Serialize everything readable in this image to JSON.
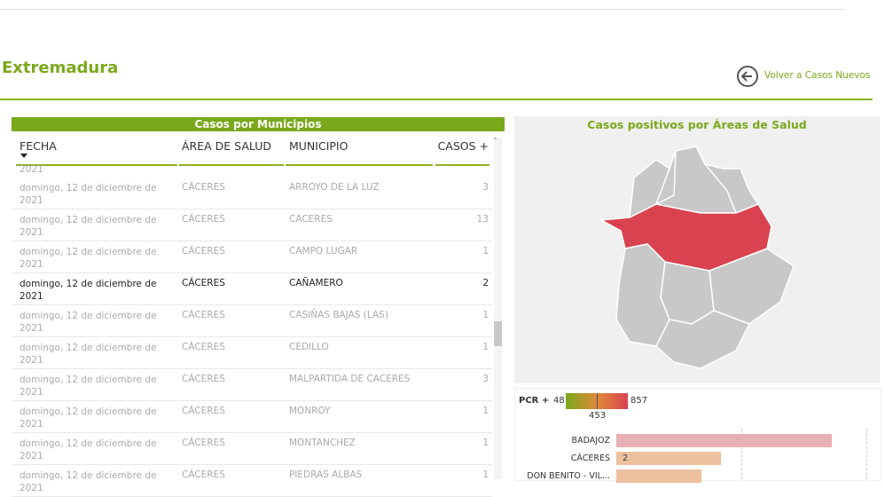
{
  "header": {
    "title": "Extremadura",
    "back_link": "Volver a Casos Nuevos"
  },
  "table": {
    "title": "Casos por Municipios",
    "columns": [
      "FECHA",
      "ÁREA DE SALUD",
      "MUNICIPIO",
      "CASOS +"
    ],
    "partial_row": "2021",
    "rows": [
      [
        "domingo, 12 de diciembre de 2021",
        "CÁCERES",
        "ARROYO DE LA LUZ",
        "3"
      ],
      [
        "domingo, 12 de diciembre de 2021",
        "CÁCERES",
        "CACERES",
        "13"
      ],
      [
        "domingo, 12 de diciembre de 2021",
        "CÁCERES",
        "CAMPO LUGAR",
        "1"
      ],
      [
        "domingo, 12 de diciembre de 2021",
        "CÁCERES",
        "CAÑAMERO",
        "2"
      ],
      [
        "domingo, 12 de diciembre de 2021",
        "CÁCERES",
        "CASIÑAS BAJAS (LAS)",
        "1"
      ],
      [
        "domingo, 12 de diciembre de 2021",
        "CÁCERES",
        "CEDILLO",
        "1"
      ],
      [
        "domingo, 12 de diciembre de 2021",
        "CÁCERES",
        "MALPARTIDA DE CACERES",
        "3"
      ],
      [
        "domingo, 12 de diciembre de 2021",
        "CÁCERES",
        "MONROY",
        "1"
      ],
      [
        "domingo, 12 de diciembre de 2021",
        "CÁCERES",
        "MONTANCHEZ",
        "1"
      ],
      [
        "domingo, 12 de diciembre de 2021",
        "CÁCERES",
        "PIEDRAS ALBAS",
        "1"
      ]
    ],
    "selected_row": 3
  },
  "map": {
    "title": "Casos positivos por Áreas de Salud"
  },
  "legend": {
    "title": "PCR +",
    "min": "48",
    "mid": "453",
    "max": "857"
  },
  "bar_chart": {
    "xlim": [
      0,
      100
    ],
    "grid": [
      50,
      100
    ],
    "bars": [
      {
        "name": "BADAJOZ",
        "value": 86,
        "color": "#e8b0b4"
      },
      {
        "name": "CÁCERES",
        "value": 42,
        "color": "#edc0a0",
        "label": "2"
      },
      {
        "name": "DON BENITO - VIL...",
        "value": 34,
        "color": "#edc0a0"
      }
    ]
  }
}
